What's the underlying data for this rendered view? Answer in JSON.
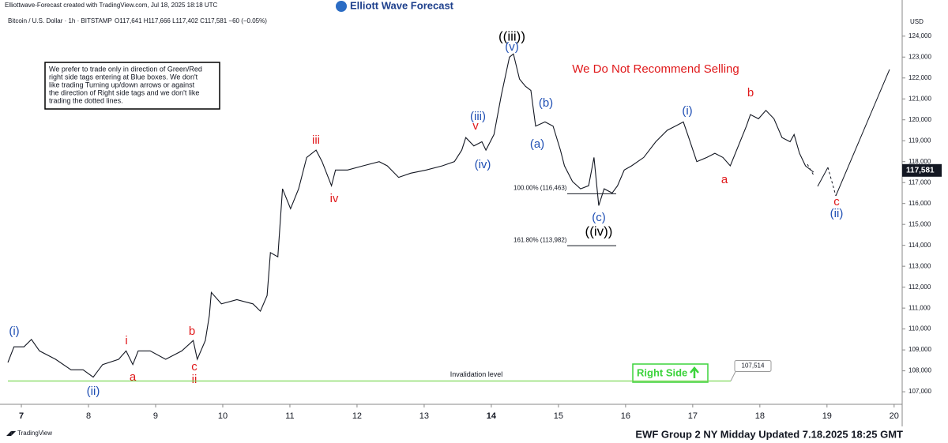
{
  "chart_data": {
    "type": "line",
    "credit": "Elliottwave-Forecast created with TradingView.com, Jul 18, 2025 18:18 UTC",
    "brand": "Elliott Wave Forecast",
    "title": "Bitcoin / U.S. Dollar · 1h · BITSTAMP",
    "quote": "O117,641 H117,666 L117,402 C117,581 −60 (−0.05%)",
    "currency": "USD",
    "note": [
      "We prefer to trade only in direction of Green/Red",
      "right side tags entering at Blue boxes. We don't",
      "like trading Turning up/down arrows or against",
      "the direction of Right side tags and we don't like",
      "trading the dotted lines."
    ],
    "headline": "We Do Not Recommend Selling",
    "right_side": "Right Side",
    "footer": "EWF Group 2 NY Midday Updated 7.18.2025 18:25 GMT",
    "platform": "TradingView",
    "xlim": [
      6.682,
      20.12
    ],
    "xticks": [
      7,
      8,
      9,
      10,
      11,
      12,
      13,
      14,
      15,
      16,
      17,
      18,
      19,
      20
    ],
    "ylim": [
      106400,
      125350
    ],
    "yticks": [
      {
        "value": 107000,
        "label": "107,000"
      },
      {
        "value": 108000,
        "label": "108,000"
      },
      {
        "value": 109000,
        "label": "109,000"
      },
      {
        "value": 110000,
        "label": "110,000"
      },
      {
        "value": 111000,
        "label": "111,000"
      },
      {
        "value": 112000,
        "label": "112,000"
      },
      {
        "value": 113000,
        "label": "113,000"
      },
      {
        "value": 114000,
        "label": "114,000"
      },
      {
        "value": 115000,
        "label": "115,000"
      },
      {
        "value": 116000,
        "label": "116,000"
      },
      {
        "value": 117000,
        "label": "117,000"
      },
      {
        "value": 118000,
        "label": "118,000"
      },
      {
        "value": 119000,
        "label": "119,000"
      },
      {
        "value": 120000,
        "label": "120,000"
      },
      {
        "value": 121000,
        "label": "121,000"
      },
      {
        "value": 122000,
        "label": "122,000"
      },
      {
        "value": 123000,
        "label": "123,000"
      },
      {
        "value": 124000,
        "label": "124,000"
      }
    ],
    "series": [
      {
        "name": "BTCUSD",
        "color": "#131722",
        "x": [
          6.8,
          6.89,
          7.04,
          7.15,
          7.27,
          7.51,
          7.74,
          7.92,
          8.07,
          8.21,
          8.45,
          8.56,
          8.66,
          8.74,
          8.92,
          9.15,
          9.39,
          9.56,
          9.62,
          9.74,
          9.8,
          9.83,
          9.98,
          10.21,
          10.45,
          10.56,
          10.66,
          10.71,
          10.82,
          10.89,
          11.01,
          11.13,
          11.25,
          11.33,
          11.39,
          11.48,
          11.62,
          11.68,
          11.86,
          12.09,
          12.33,
          12.45,
          12.62,
          12.8,
          13.03,
          13.27,
          13.45,
          13.56,
          13.62,
          13.74,
          13.86,
          13.92,
          14.04,
          14.15,
          14.27,
          14.33,
          14.42,
          14.51,
          14.59,
          14.66,
          14.8,
          14.92,
          15.03,
          15.09,
          15.21,
          15.33,
          15.45,
          15.53,
          15.6,
          15.68,
          15.8,
          15.88,
          15.98,
          16.09,
          16.27,
          16.45,
          16.62,
          16.74,
          16.86,
          16.94,
          17.06,
          17.21,
          17.33,
          17.45,
          17.56,
          17.68,
          17.8,
          17.86,
          17.98,
          18.09,
          18.21,
          18.33,
          18.45,
          18.51,
          18.59,
          18.68,
          18.8
        ],
        "values": [
          108400,
          109150,
          109150,
          109500,
          108950,
          108550,
          108050,
          108050,
          107700,
          108300,
          108550,
          108950,
          108300,
          108950,
          108950,
          108550,
          108950,
          109450,
          108550,
          109450,
          110650,
          111750,
          111200,
          111400,
          111200,
          110850,
          111600,
          113650,
          113450,
          116700,
          115750,
          116700,
          118200,
          118400,
          118550,
          118000,
          116850,
          117600,
          117600,
          117800,
          118000,
          117800,
          117250,
          117450,
          117600,
          117800,
          118000,
          118550,
          119150,
          118750,
          118950,
          118550,
          119300,
          121200,
          123000,
          123150,
          121950,
          121600,
          121400,
          119700,
          119900,
          119700,
          118550,
          117800,
          117050,
          116700,
          116850,
          118200,
          115900,
          116700,
          116500,
          116850,
          117600,
          117800,
          118200,
          118950,
          119500,
          119700,
          119900,
          119150,
          118000,
          118200,
          118400,
          118200,
          117800,
          118750,
          119700,
          120250,
          120050,
          120450,
          120050,
          119150,
          118950,
          119300,
          118400,
          117800,
          117500
        ]
      }
    ],
    "last_price": {
      "value": 117581,
      "label": "117,581"
    },
    "invalidation": {
      "text": "Invalidation level",
      "value": 107514,
      "label": "107,514",
      "color": "#7ed957"
    },
    "fib_levels": [
      {
        "label": "100.00% (116,463)",
        "value": 116463
      },
      {
        "label": "161.80% (113,982)",
        "value": 113982
      }
    ],
    "annotations": [
      {
        "text": "(i)",
        "color": "#1f4fb4"
      },
      {
        "text": "(ii)",
        "color": "#1f4fb4"
      },
      {
        "text": "i",
        "color": "#e0191b"
      },
      {
        "text": "a",
        "color": "#e0191b"
      },
      {
        "text": "b",
        "color": "#e0191b"
      },
      {
        "text": "c",
        "color": "#e0191b"
      },
      {
        "text": "ii",
        "color": "#e0191b"
      },
      {
        "text": "iii",
        "color": "#e0191b"
      },
      {
        "text": "iv",
        "color": "#e0191b"
      },
      {
        "text": "v",
        "color": "#e0191b"
      },
      {
        "text": "(iii)",
        "color": "#1f4fb4"
      },
      {
        "text": "(iv)",
        "color": "#1f4fb4"
      },
      {
        "text": "((iii))",
        "color": "#000000"
      },
      {
        "text": "(v)",
        "color": "#1f4fb4"
      },
      {
        "text": "(b)",
        "color": "#1f4fb4"
      },
      {
        "text": "(a)",
        "color": "#1f4fb4"
      },
      {
        "text": "(c)",
        "color": "#1f4fb4"
      },
      {
        "text": "((iv))",
        "color": "#000000"
      },
      {
        "text": "(i)",
        "color": "#1f4fb4"
      },
      {
        "text": "b",
        "color": "#e0191b"
      },
      {
        "text": "a",
        "color": "#e0191b"
      },
      {
        "text": "c",
        "color": "#e0191b"
      },
      {
        "text": "(ii)",
        "color": "#1f4fb4"
      }
    ]
  }
}
